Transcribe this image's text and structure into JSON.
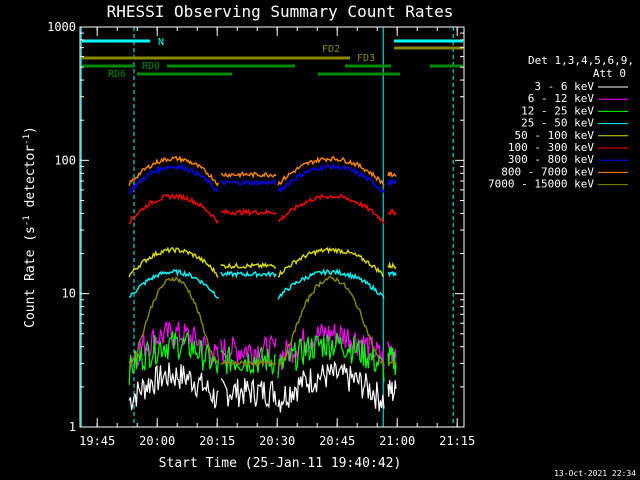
{
  "chart_data": {
    "type": "line",
    "title": "RHESSI Observing Summary Count Rates",
    "xlabel": "Start Time (25-Jan-11 19:40:42)",
    "ylabel_main": "Count Rate (s",
    "ylabel_sup1": "-1",
    "ylabel_mid": " detector",
    "ylabel_sup2": "-1",
    "ylabel_end": ")",
    "yscale": "log",
    "ylim": [
      1,
      1000
    ],
    "xlim_minutes": [
      0,
      96
    ],
    "x_ticks": [
      "19:45",
      "20:00",
      "20:15",
      "20:30",
      "20:45",
      "21:00",
      "21:15"
    ],
    "y_ticks": [
      "1",
      "10",
      "100",
      "1000"
    ],
    "legend_header": [
      "Det 1,3,4,5,6,9,",
      "Att 0"
    ],
    "legend_position": "right",
    "timestamp": "13-Oct-2021 22:34",
    "series": [
      {
        "name": "3 - 6 keV",
        "color": "#ffffff",
        "level": 2.2
      },
      {
        "name": "6 - 12 keV",
        "color": "#ff00ff",
        "level": 4.5
      },
      {
        "name": "12 - 25 keV",
        "color": "#00ff00",
        "level": 3.8
      },
      {
        "name": "25 - 50 keV",
        "color": "#00ffff",
        "level": 13
      },
      {
        "name": "50 - 100 keV",
        "color": "#dddd00",
        "level": 19
      },
      {
        "name": "100 - 300 keV",
        "color": "#ff0000",
        "level": 48
      },
      {
        "name": "300 - 800 keV",
        "color": "#0000ff",
        "level": 80
      },
      {
        "name": "800 - 7000 keV",
        "color": "#ff8800",
        "level": 92
      },
      {
        "name": "7000 - 15000 keV",
        "color": "#888800",
        "level": 8
      }
    ],
    "flags": [
      {
        "label": "N",
        "color": "#00ffff"
      },
      {
        "label": "FD2",
        "color": "#888800"
      },
      {
        "label": "FD3",
        "color": "#888800"
      },
      {
        "label": "RD0",
        "color": "#008800"
      },
      {
        "label": "RD6",
        "color": "#008800"
      }
    ]
  }
}
